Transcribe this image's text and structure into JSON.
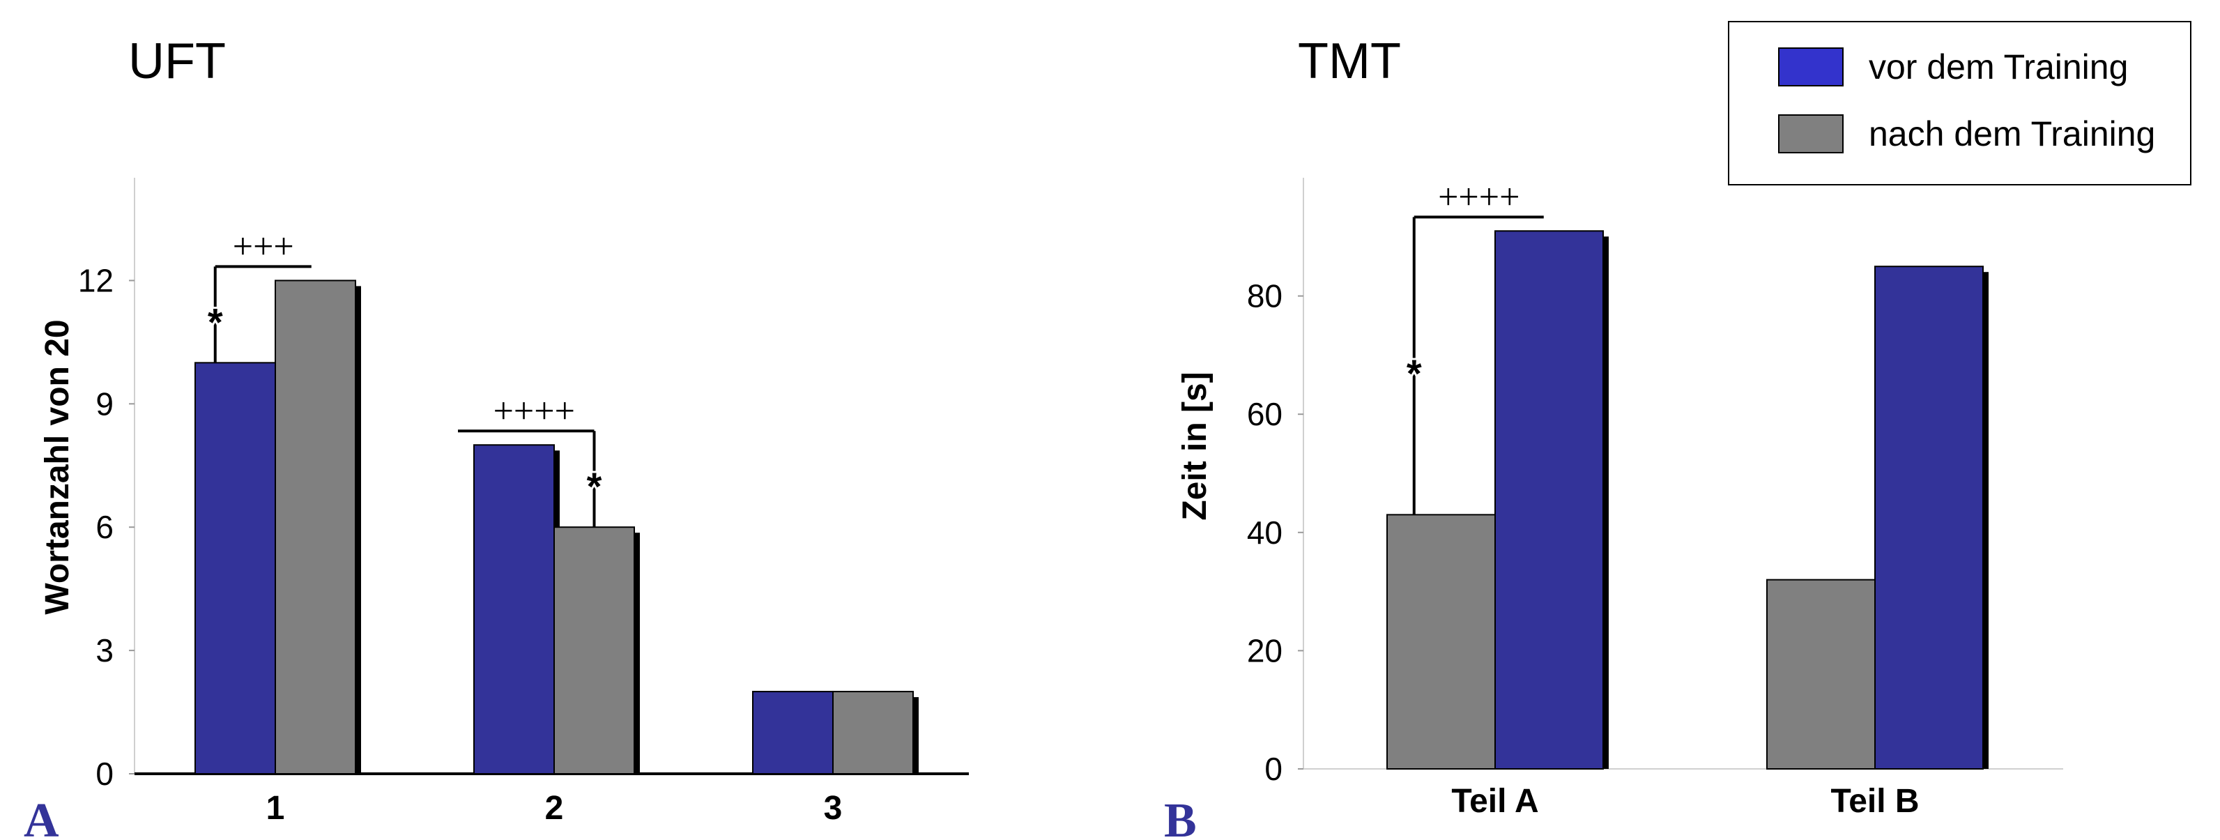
{
  "colors": {
    "before": "#333399",
    "after": "#808080",
    "axis": "#000000",
    "panel_letter": "#333399"
  },
  "legend": [
    {
      "label": "vor dem Training",
      "color": "#3333cc"
    },
    {
      "label": "nach dem Training",
      "color": "#808080"
    }
  ],
  "chart_data": [
    {
      "panel": "A",
      "type": "bar",
      "title": "UFT",
      "ylabel": "Wortanzahl von 20",
      "xlabel": "",
      "categories": [
        "1",
        "2",
        "3"
      ],
      "yticks": [
        "0",
        "3",
        "6",
        "9",
        "12"
      ],
      "ylim": [
        0,
        14.5
      ],
      "bars": [
        {
          "category": "1",
          "series": "vor dem Training",
          "value": 10,
          "color": "#333399"
        },
        {
          "category": "1",
          "series": "nach dem Training",
          "value": 12,
          "color": "#808080"
        },
        {
          "category": "2",
          "series": "vor dem Training",
          "value": 8,
          "color": "#333399"
        },
        {
          "category": "2",
          "series": "nach dem Training",
          "value": 6,
          "color": "#808080"
        },
        {
          "category": "3",
          "series": "vor dem Training",
          "value": 2,
          "color": "#333399"
        },
        {
          "category": "3",
          "series": "nach dem Training",
          "value": 2,
          "color": "#808080"
        }
      ],
      "annotations": [
        {
          "category": "1",
          "plus": "+++",
          "star": "*"
        },
        {
          "category": "2",
          "plus": "++++",
          "star": "*"
        }
      ],
      "grid": false
    },
    {
      "panel": "B",
      "type": "bar",
      "title": "TMT",
      "ylabel": "Zeit in [s]",
      "xlabel": "",
      "categories": [
        "Teil A",
        "Teil B"
      ],
      "yticks": [
        "0",
        "20",
        "40",
        "60",
        "80"
      ],
      "ylim": [
        0,
        100
      ],
      "bars": [
        {
          "category": "Teil A",
          "series": "nach dem Training",
          "value": 43,
          "color": "#808080"
        },
        {
          "category": "Teil A",
          "series": "vor dem Training",
          "value": 91,
          "color": "#333399"
        },
        {
          "category": "Teil B",
          "series": "nach dem Training",
          "value": 32,
          "color": "#808080"
        },
        {
          "category": "Teil B",
          "series": "vor dem Training",
          "value": 85,
          "color": "#333399"
        }
      ],
      "annotations": [
        {
          "category": "Teil A",
          "plus": "++++",
          "star": "*"
        }
      ],
      "grid": false
    }
  ]
}
